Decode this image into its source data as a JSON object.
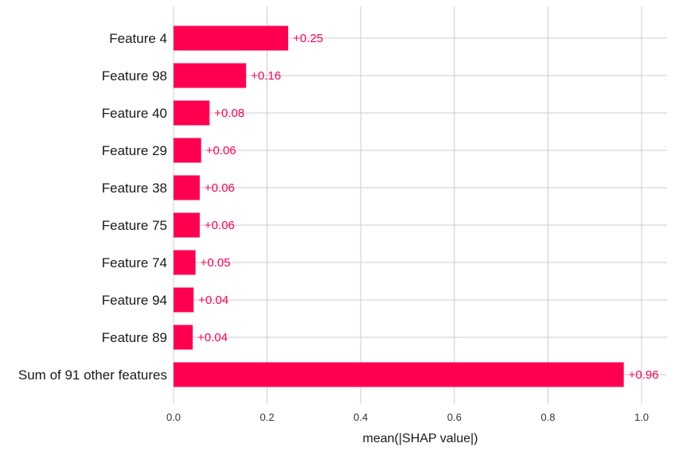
{
  "chart_data": {
    "type": "bar",
    "orientation": "horizontal",
    "categories": [
      "Feature 4",
      "Feature 98",
      "Feature 40",
      "Feature 29",
      "Feature 38",
      "Feature 75",
      "Feature 74",
      "Feature 94",
      "Feature 89",
      "Sum of 91 other features"
    ],
    "values": [
      0.245,
      0.155,
      0.077,
      0.059,
      0.056,
      0.056,
      0.047,
      0.043,
      0.041,
      0.962
    ],
    "data_labels": [
      "+0.25",
      "+0.16",
      "+0.08",
      "+0.06",
      "+0.06",
      "+0.06",
      "+0.05",
      "+0.04",
      "+0.04",
      "+0.96"
    ],
    "xlabel": "mean(|SHAP value|)",
    "ylabel": "",
    "title": "",
    "xlim": [
      0,
      1.05
    ],
    "xticks": [
      0.0,
      0.2,
      0.4,
      0.6,
      0.8,
      1.0
    ],
    "xtick_labels": [
      "0.0",
      "0.2",
      "0.4",
      "0.6",
      "0.8",
      "1.0"
    ],
    "grid": true,
    "colors": {
      "bar": "#ff0051",
      "label": "#ff0051",
      "grid": "#cccccc"
    }
  }
}
